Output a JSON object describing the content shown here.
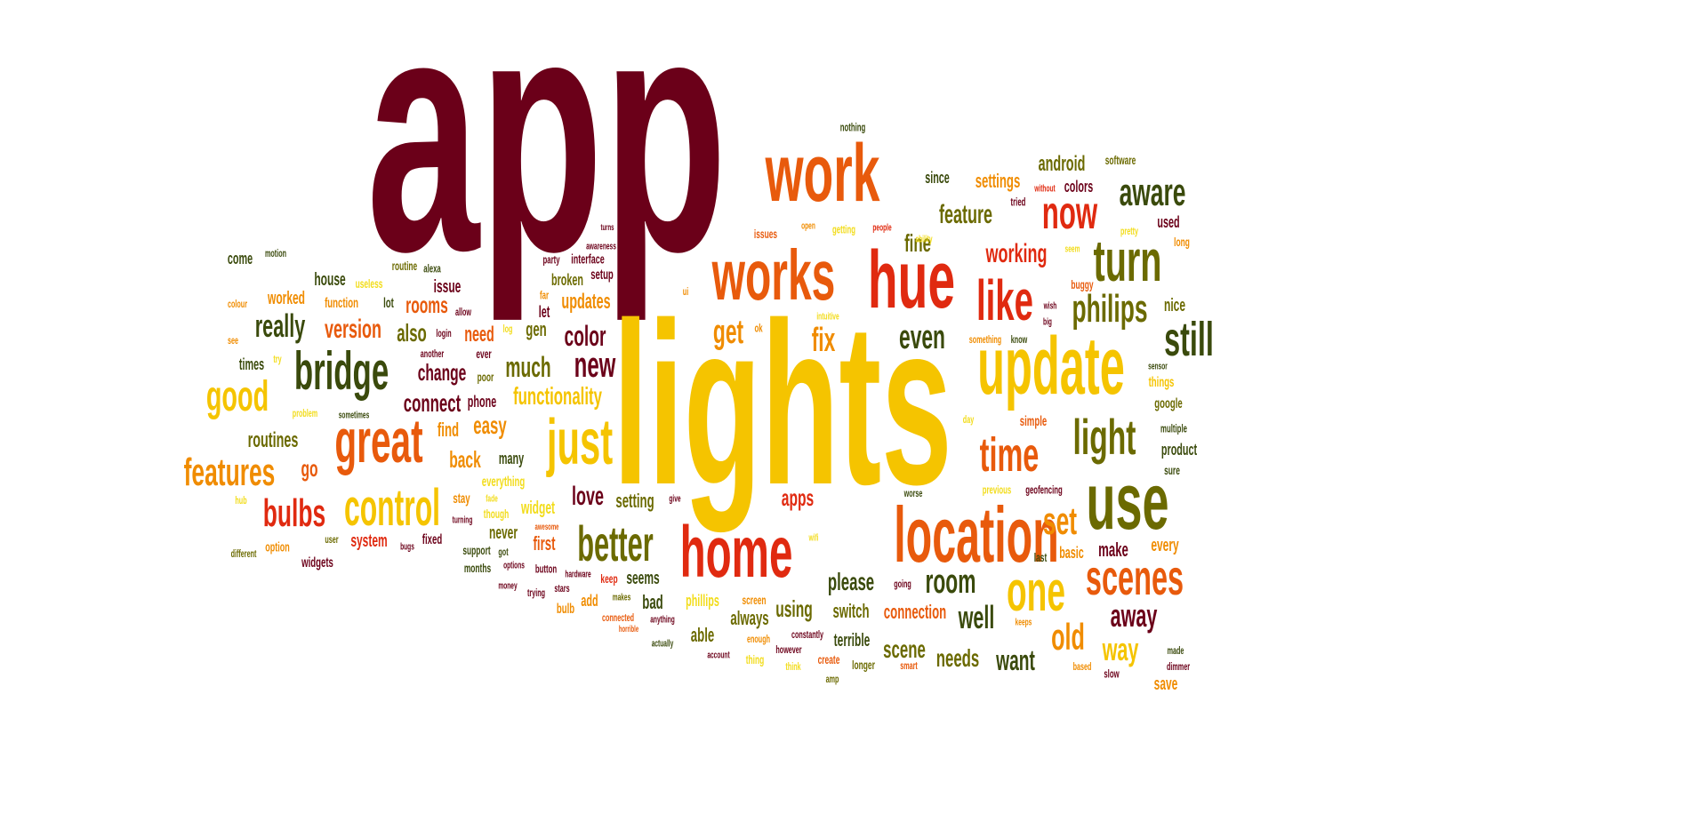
{
  "palette": {
    "maroon": "#6b0019",
    "yellow": "#f5c400",
    "lightyellow": "#f2dc1a",
    "orange": "#f08c00",
    "darkorange": "#e85a0c",
    "red": "#e02a10",
    "olive": "#6b6a00",
    "darkgreen": "#3a4a0c"
  },
  "words": [
    {
      "text": "app",
      "c": "maroon"
    },
    {
      "text": "lights",
      "c": "yellow"
    },
    {
      "text": "work",
      "c": "darkorange"
    },
    {
      "text": "works",
      "c": "darkorange"
    },
    {
      "text": "hue",
      "c": "red"
    },
    {
      "text": "update",
      "c": "yellow"
    },
    {
      "text": "location",
      "c": "darkorange"
    },
    {
      "text": "home",
      "c": "red"
    },
    {
      "text": "use",
      "c": "olive"
    },
    {
      "text": "just",
      "c": "yellow"
    },
    {
      "text": "great",
      "c": "darkorange"
    },
    {
      "text": "bridge",
      "c": "darkgreen"
    },
    {
      "text": "control",
      "c": "yellow"
    },
    {
      "text": "scenes",
      "c": "darkorange"
    },
    {
      "text": "one",
      "c": "yellow"
    },
    {
      "text": "better",
      "c": "olive"
    },
    {
      "text": "time",
      "c": "darkorange"
    },
    {
      "text": "light",
      "c": "olive"
    },
    {
      "text": "like",
      "c": "red"
    },
    {
      "text": "turn",
      "c": "olive"
    },
    {
      "text": "now",
      "c": "red"
    },
    {
      "text": "aware",
      "c": "darkgreen"
    },
    {
      "text": "still",
      "c": "darkgreen"
    },
    {
      "text": "philips",
      "c": "olive"
    },
    {
      "text": "good",
      "c": "yellow"
    },
    {
      "text": "features",
      "c": "orange"
    },
    {
      "text": "bulbs",
      "c": "red"
    },
    {
      "text": "room",
      "c": "darkgreen"
    },
    {
      "text": "fix",
      "c": "orange"
    },
    {
      "text": "get",
      "c": "orange"
    },
    {
      "text": "even",
      "c": "darkgreen"
    },
    {
      "text": "set",
      "c": "orange"
    },
    {
      "text": "new",
      "c": "maroon"
    },
    {
      "text": "color",
      "c": "maroon"
    },
    {
      "text": "much",
      "c": "olive"
    },
    {
      "text": "really",
      "c": "darkgreen"
    },
    {
      "text": "version",
      "c": "darkorange"
    },
    {
      "text": "also",
      "c": "olive"
    },
    {
      "text": "feature",
      "c": "olive"
    },
    {
      "text": "working",
      "c": "red"
    },
    {
      "text": "fine",
      "c": "olive"
    },
    {
      "text": "old",
      "c": "orange"
    },
    {
      "text": "way",
      "c": "yellow"
    },
    {
      "text": "away",
      "c": "maroon"
    },
    {
      "text": "well",
      "c": "darkgreen"
    },
    {
      "text": "want",
      "c": "darkgreen"
    },
    {
      "text": "needs",
      "c": "olive"
    },
    {
      "text": "scene",
      "c": "olive"
    },
    {
      "text": "please",
      "c": "darkgreen"
    },
    {
      "text": "connection",
      "c": "darkorange"
    },
    {
      "text": "switch",
      "c": "olive"
    },
    {
      "text": "using",
      "c": "olive"
    },
    {
      "text": "terrible",
      "c": "darkgreen"
    },
    {
      "text": "always",
      "c": "olive"
    },
    {
      "text": "able",
      "c": "olive"
    },
    {
      "text": "bad",
      "c": "darkgreen"
    },
    {
      "text": "phillips",
      "c": "lightyellow"
    },
    {
      "text": "apps",
      "c": "red"
    },
    {
      "text": "setting",
      "c": "olive"
    },
    {
      "text": "love",
      "c": "maroon"
    },
    {
      "text": "seems",
      "c": "darkgreen"
    },
    {
      "text": "first",
      "c": "darkorange"
    },
    {
      "text": "never",
      "c": "olive"
    },
    {
      "text": "widget",
      "c": "lightyellow"
    },
    {
      "text": "everything",
      "c": "lightyellow"
    },
    {
      "text": "easy",
      "c": "orange"
    },
    {
      "text": "functionality",
      "c": "yellow"
    },
    {
      "text": "updates",
      "c": "orange"
    },
    {
      "text": "gen",
      "c": "olive"
    },
    {
      "text": "let",
      "c": "maroon"
    },
    {
      "text": "far",
      "c": "orange"
    },
    {
      "text": "broken",
      "c": "olive"
    },
    {
      "text": "interface",
      "c": "maroon"
    },
    {
      "text": "setup",
      "c": "maroon"
    },
    {
      "text": "party",
      "c": "maroon"
    },
    {
      "text": "awareness",
      "c": "maroon"
    },
    {
      "text": "turns",
      "c": "maroon"
    },
    {
      "text": "rooms",
      "c": "darkorange"
    },
    {
      "text": "issue",
      "c": "maroon"
    },
    {
      "text": "need",
      "c": "darkorange"
    },
    {
      "text": "change",
      "c": "maroon"
    },
    {
      "text": "connect",
      "c": "maroon"
    },
    {
      "text": "phone",
      "c": "maroon"
    },
    {
      "text": "find",
      "c": "orange"
    },
    {
      "text": "back",
      "c": "orange"
    },
    {
      "text": "many",
      "c": "darkgreen"
    },
    {
      "text": "poor",
      "c": "olive"
    },
    {
      "text": "ever",
      "c": "maroon"
    },
    {
      "text": "log",
      "c": "lightyellow"
    },
    {
      "text": "another",
      "c": "maroon"
    },
    {
      "text": "login",
      "c": "maroon"
    },
    {
      "text": "allow",
      "c": "maroon"
    },
    {
      "text": "alexa",
      "c": "darkgreen"
    },
    {
      "text": "routine",
      "c": "olive"
    },
    {
      "text": "house",
      "c": "darkgreen"
    },
    {
      "text": "lot",
      "c": "darkgreen"
    },
    {
      "text": "useless",
      "c": "lightyellow"
    },
    {
      "text": "function",
      "c": "orange"
    },
    {
      "text": "worked",
      "c": "orange"
    },
    {
      "text": "motion",
      "c": "darkgreen"
    },
    {
      "text": "come",
      "c": "darkgreen"
    },
    {
      "text": "colour",
      "c": "orange"
    },
    {
      "text": "see",
      "c": "orange"
    },
    {
      "text": "try",
      "c": "lightyellow"
    },
    {
      "text": "times",
      "c": "darkgreen"
    },
    {
      "text": "problem",
      "c": "lightyellow"
    },
    {
      "text": "sometimes",
      "c": "darkgreen"
    },
    {
      "text": "routines",
      "c": "olive"
    },
    {
      "text": "go",
      "c": "darkorange"
    },
    {
      "text": "hub",
      "c": "lightyellow"
    },
    {
      "text": "option",
      "c": "orange"
    },
    {
      "text": "different",
      "c": "olive"
    },
    {
      "text": "user",
      "c": "olive"
    },
    {
      "text": "system",
      "c": "red"
    },
    {
      "text": "widgets",
      "c": "maroon"
    },
    {
      "text": "bugs",
      "c": "maroon"
    },
    {
      "text": "fixed",
      "c": "maroon"
    },
    {
      "text": "support",
      "c": "darkgreen"
    },
    {
      "text": "stay",
      "c": "orange"
    },
    {
      "text": "turning",
      "c": "maroon"
    },
    {
      "text": "fade",
      "c": "lightyellow"
    },
    {
      "text": "though",
      "c": "lightyellow"
    },
    {
      "text": "months",
      "c": "darkgreen"
    },
    {
      "text": "got",
      "c": "darkgreen"
    },
    {
      "text": "awesome",
      "c": "darkorange"
    },
    {
      "text": "options",
      "c": "maroon"
    },
    {
      "text": "button",
      "c": "maroon"
    },
    {
      "text": "hardware",
      "c": "maroon"
    },
    {
      "text": "stars",
      "c": "maroon"
    },
    {
      "text": "money",
      "c": "maroon"
    },
    {
      "text": "trying",
      "c": "maroon"
    },
    {
      "text": "bulb",
      "c": "orange"
    },
    {
      "text": "add",
      "c": "orange"
    },
    {
      "text": "makes",
      "c": "olive"
    },
    {
      "text": "connected",
      "c": "darkorange"
    },
    {
      "text": "horrible",
      "c": "darkorange"
    },
    {
      "text": "keep",
      "c": "red"
    },
    {
      "text": "anything",
      "c": "maroon"
    },
    {
      "text": "actually",
      "c": "darkgreen"
    },
    {
      "text": "account",
      "c": "maroon"
    },
    {
      "text": "thing",
      "c": "lightyellow"
    },
    {
      "text": "screen",
      "c": "orange"
    },
    {
      "text": "enough",
      "c": "orange"
    },
    {
      "text": "however",
      "c": "maroon"
    },
    {
      "text": "constantly",
      "c": "maroon"
    },
    {
      "text": "think",
      "c": "lightyellow"
    },
    {
      "text": "create",
      "c": "darkorange"
    },
    {
      "text": "amp",
      "c": "olive"
    },
    {
      "text": "longer",
      "c": "olive"
    },
    {
      "text": "smart",
      "c": "darkorange"
    },
    {
      "text": "going",
      "c": "maroon"
    },
    {
      "text": "give",
      "c": "maroon"
    },
    {
      "text": "wifi",
      "c": "lightyellow"
    },
    {
      "text": "worse",
      "c": "darkgreen"
    },
    {
      "text": "previous",
      "c": "lightyellow"
    },
    {
      "text": "geofencing",
      "c": "maroon"
    },
    {
      "text": "basic",
      "c": "orange"
    },
    {
      "text": "last",
      "c": "darkgreen"
    },
    {
      "text": "make",
      "c": "maroon"
    },
    {
      "text": "every",
      "c": "orange"
    },
    {
      "text": "based",
      "c": "orange"
    },
    {
      "text": "slow",
      "c": "maroon"
    },
    {
      "text": "made",
      "c": "darkgreen"
    },
    {
      "text": "dimmer",
      "c": "maroon"
    },
    {
      "text": "save",
      "c": "orange"
    },
    {
      "text": "keeps",
      "c": "orange"
    },
    {
      "text": "sure",
      "c": "darkgreen"
    },
    {
      "text": "product",
      "c": "darkgreen"
    },
    {
      "text": "multiple",
      "c": "darkgreen"
    },
    {
      "text": "google",
      "c": "olive"
    },
    {
      "text": "things",
      "c": "yellow"
    },
    {
      "text": "sensor",
      "c": "darkgreen"
    },
    {
      "text": "simple",
      "c": "darkorange"
    },
    {
      "text": "day",
      "c": "lightyellow"
    },
    {
      "text": "nice",
      "c": "olive"
    },
    {
      "text": "big",
      "c": "maroon"
    },
    {
      "text": "wish",
      "c": "maroon"
    },
    {
      "text": "buggy",
      "c": "darkorange"
    },
    {
      "text": "know",
      "c": "darkgreen"
    },
    {
      "text": "something",
      "c": "orange"
    },
    {
      "text": "used",
      "c": "maroon"
    },
    {
      "text": "long",
      "c": "orange"
    },
    {
      "text": "pretty",
      "c": "lightyellow"
    },
    {
      "text": "seem",
      "c": "lightyellow"
    },
    {
      "text": "colors",
      "c": "maroon"
    },
    {
      "text": "tried",
      "c": "maroon"
    },
    {
      "text": "without",
      "c": "red"
    },
    {
      "text": "android",
      "c": "olive"
    },
    {
      "text": "software",
      "c": "olive"
    },
    {
      "text": "settings",
      "c": "orange"
    },
    {
      "text": "since",
      "c": "darkgreen"
    },
    {
      "text": "nothing",
      "c": "darkgreen"
    },
    {
      "text": "issues",
      "c": "darkorange"
    },
    {
      "text": "open",
      "c": "orange"
    },
    {
      "text": "getting",
      "c": "lightyellow"
    },
    {
      "text": "people",
      "c": "red"
    },
    {
      "text": "ability",
      "c": "lightyellow"
    },
    {
      "text": "ui",
      "c": "orange"
    },
    {
      "text": "intuitive",
      "c": "lightyellow"
    },
    {
      "text": "ok",
      "c": "orange"
    }
  ]
}
